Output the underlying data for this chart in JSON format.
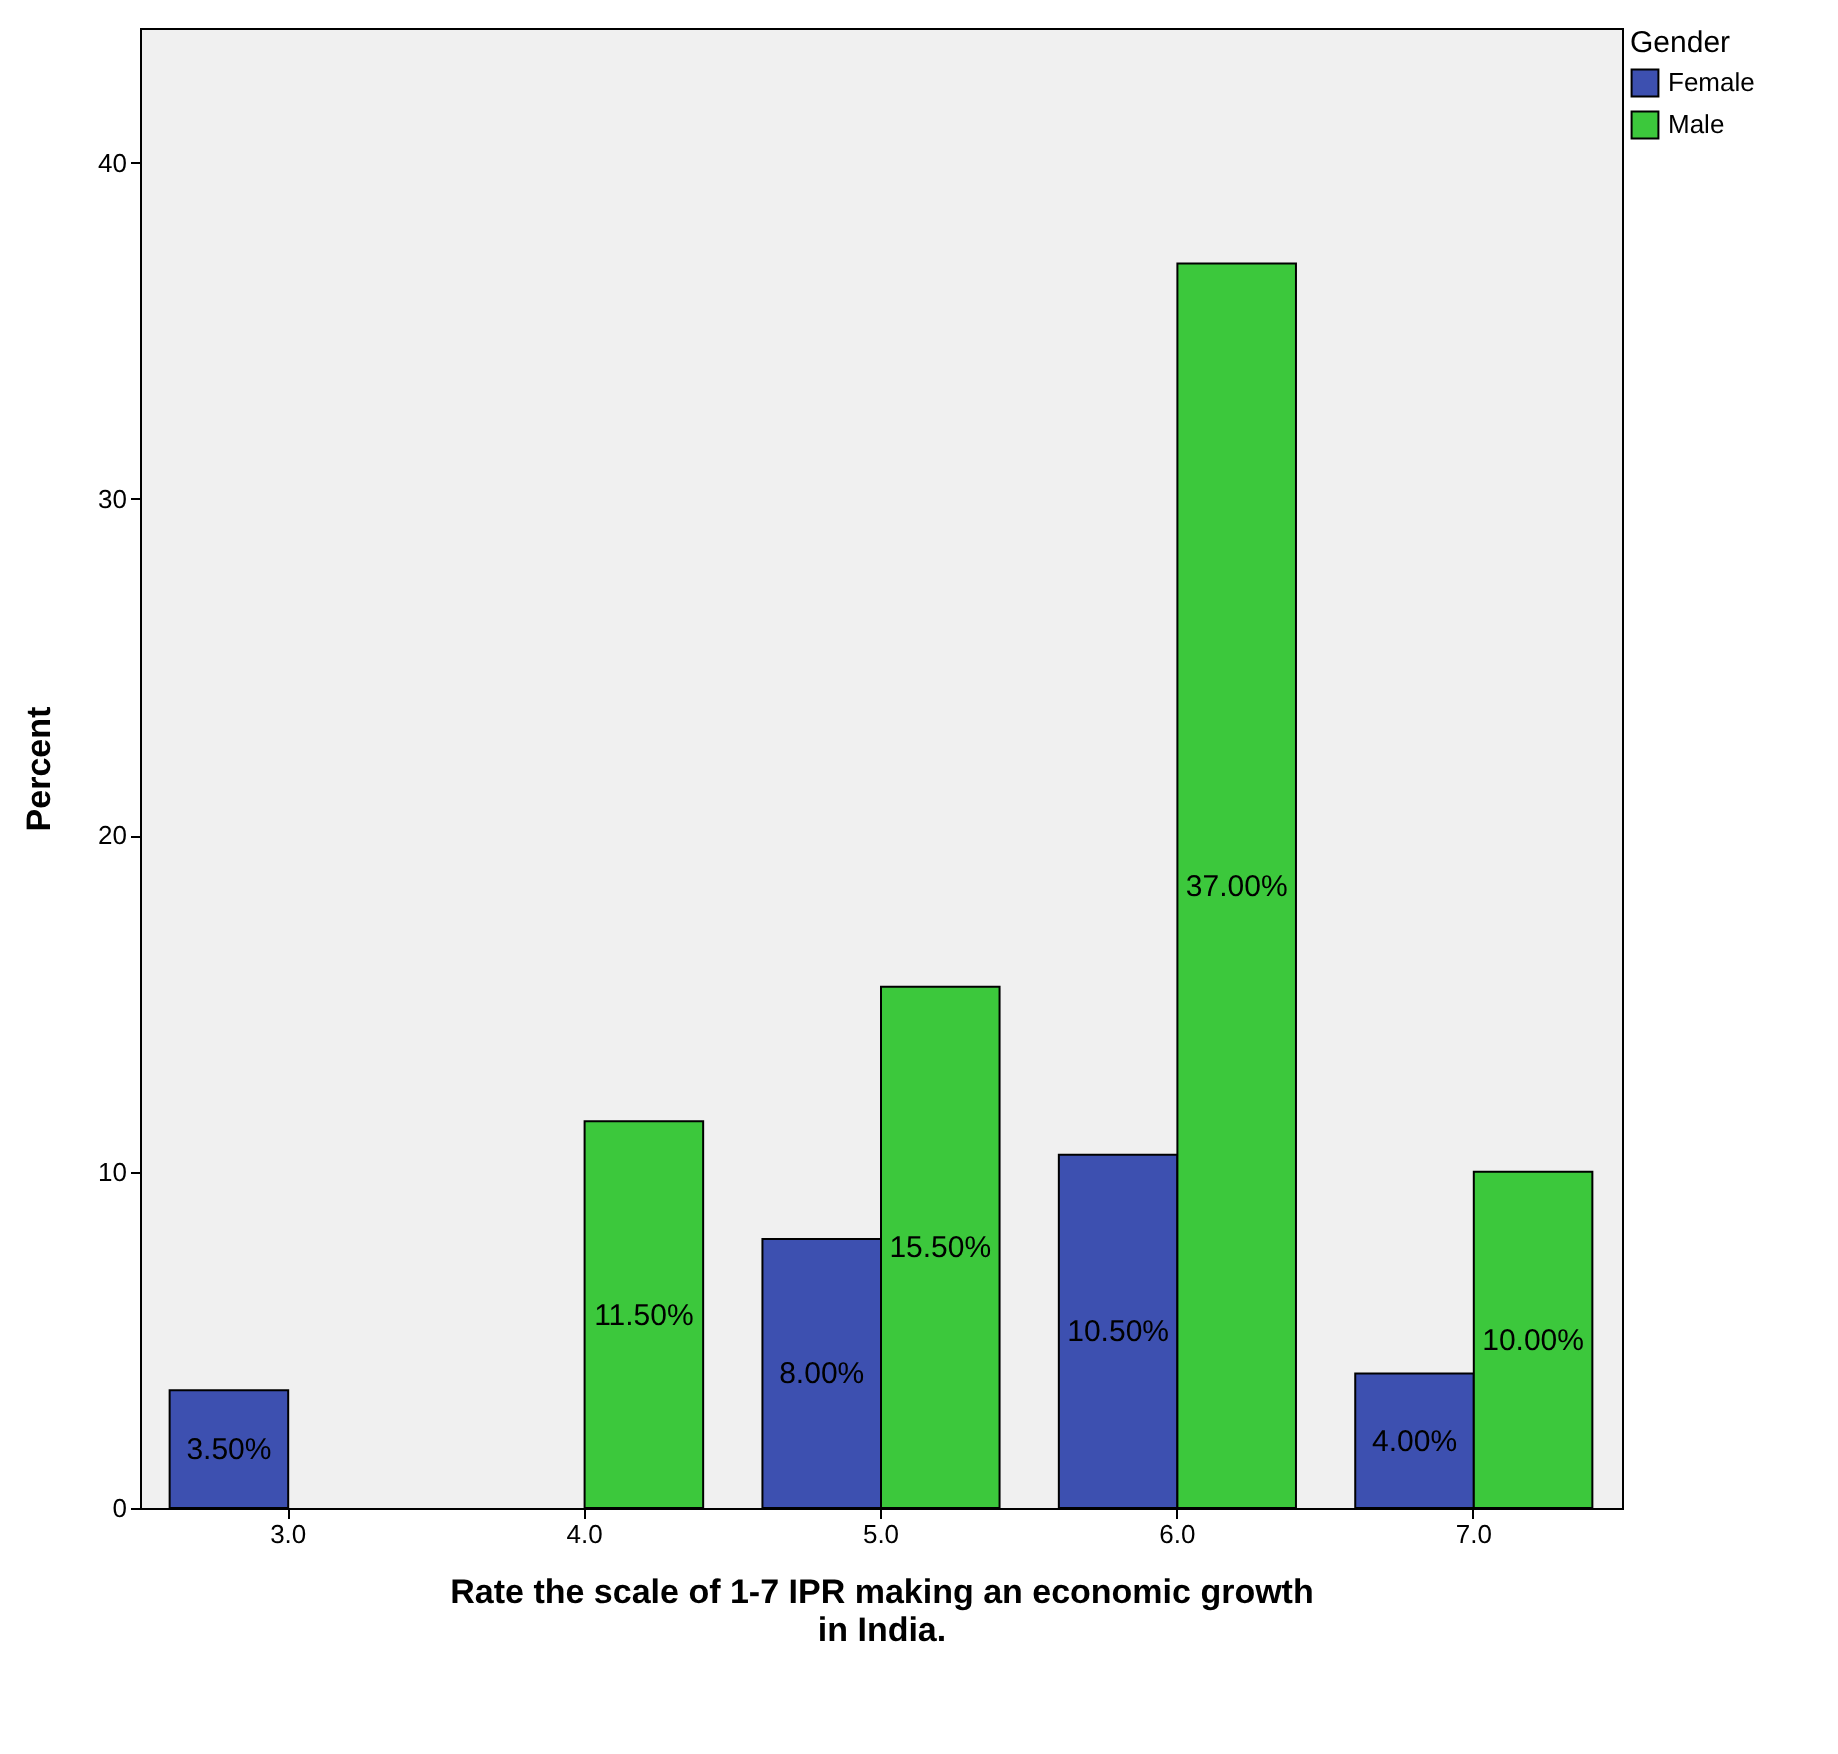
{
  "chart_data": {
    "type": "bar",
    "xlabel": "Rate the scale of 1-7 IPR making an economic growth in India.",
    "ylabel": "Percent",
    "legend_title": "Gender",
    "legend": "top right",
    "grid": false,
    "categories": [
      "3.0",
      "4.0",
      "5.0",
      "6.0",
      "7.0"
    ],
    "ylim": [
      0,
      44
    ],
    "yticks": [
      0,
      10,
      20,
      30,
      40
    ],
    "series": [
      {
        "name": "Female",
        "color": "#3d50b0",
        "values": [
          3.5,
          null,
          8,
          10.5,
          4
        ],
        "value_labels": [
          "3.50%",
          null,
          "8.00%",
          "10.50%",
          "4.00%"
        ]
      },
      {
        "name": "Male",
        "color": "#3cc83c",
        "values": [
          null,
          11.5,
          15.5,
          37,
          10
        ],
        "value_labels": [
          null,
          "11.50%",
          "15.50%",
          "37.00%",
          "10.00%"
        ]
      }
    ]
  }
}
